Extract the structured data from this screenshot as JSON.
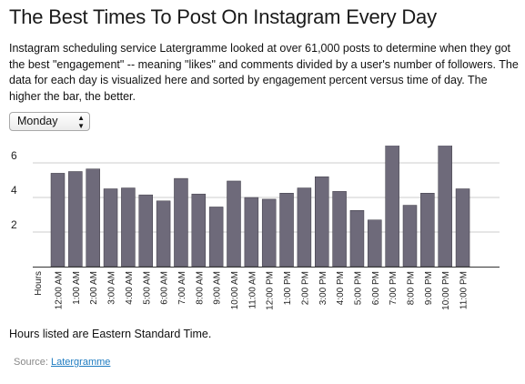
{
  "title": "The Best Times To Post On Instagram Every Day",
  "description": "Instagram scheduling service Latergramme looked at over 61,000 posts to determine when they got the best \"engagement\" -- meaning \"likes\" and comments divided by a user's number of followers. The data for each day is visualized here and sorted by engagement percent versus time of day. The higher the bar, the better.",
  "day_select": {
    "value": "Monday"
  },
  "note": "Hours listed are Eastern Standard Time.",
  "source": {
    "label": "Source:",
    "link_text": "Latergramme"
  },
  "colors": {
    "bar": "#6e6a7a",
    "bar_stroke": "#3c3a44",
    "grid": "#cccccc",
    "axis": "#333333"
  },
  "chart_data": {
    "type": "bar",
    "xlabel": "Hours",
    "ylabel": "",
    "ylim": [
      0,
      7
    ],
    "yticks": [
      2,
      4,
      6
    ],
    "grid": true,
    "categories": [
      "12:00 AM",
      "1:00 AM",
      "2:00 AM",
      "3:00 AM",
      "4:00 AM",
      "5:00 AM",
      "6:00 AM",
      "7:00 AM",
      "8:00 AM",
      "9:00 AM",
      "10:00 AM",
      "11:00 AM",
      "12:00 PM",
      "1:00 PM",
      "2:00 PM",
      "3:00 PM",
      "4:00 PM",
      "5:00 PM",
      "6:00 PM",
      "7:00 PM",
      "8:00 PM",
      "9:00 PM",
      "10:00 PM",
      "11:00 PM"
    ],
    "values": [
      5.4,
      5.5,
      5.65,
      4.5,
      4.55,
      4.15,
      3.8,
      5.1,
      4.2,
      3.45,
      4.95,
      4.0,
      3.9,
      4.25,
      4.55,
      5.2,
      4.35,
      3.25,
      2.7,
      7.1,
      3.55,
      4.25,
      7.1,
      4.5
    ]
  }
}
